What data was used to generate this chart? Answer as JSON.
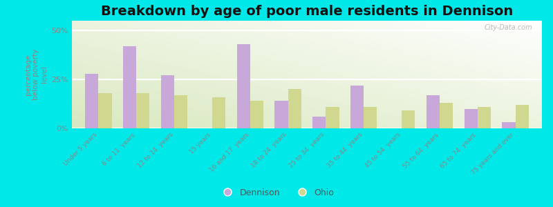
{
  "title": "Breakdown by age of poor male residents in Dennison",
  "categories": [
    "Under 5 years",
    "6 to 11  years",
    "12 to 14  years",
    "15 years",
    "16 and 17  years",
    "18 to 24  years",
    "25 to 34  years",
    "35 to 44  years",
    "45 to 54  years",
    "55 to 64  years",
    "65 to 74  years",
    "75 years and over"
  ],
  "dennison": [
    28,
    42,
    27,
    0,
    43,
    14,
    6,
    22,
    0,
    17,
    10,
    3
  ],
  "ohio": [
    18,
    18,
    17,
    16,
    14,
    20,
    11,
    11,
    9,
    13,
    11,
    12
  ],
  "dennison_color": "#c8a8d8",
  "ohio_color": "#d0d890",
  "background_color": "#00e8e8",
  "ylabel": "percentage\nbelow poverty\nlevel",
  "ylim": [
    0,
    55
  ],
  "yticks": [
    0,
    25,
    50
  ],
  "ytick_labels": [
    "0%",
    "25%",
    "50%"
  ],
  "title_fontsize": 14,
  "bar_width": 0.35,
  "watermark": "City-Data.com"
}
